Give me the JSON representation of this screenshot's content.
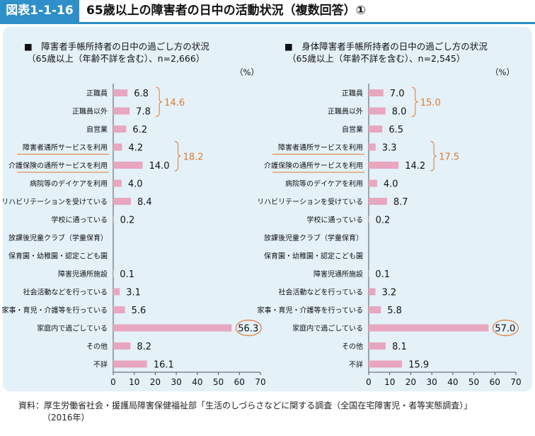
{
  "figure": {
    "number": "図表1-1-16",
    "title": "65歳以上の障害者の日中の活動状況（複数回答）①"
  },
  "source": {
    "line1": "資料：厚生労働省社会・援護局障害保健福祉部「生活のしづらさなどに関する調査（全国在宅障害児・者等実態調査）」",
    "line2": "（2016年）"
  },
  "colors": {
    "bar": "#e8a7bf",
    "accent": "#e07b2e",
    "header": "#2e8fc9",
    "panel": "#e4f1f9"
  },
  "chart_data": [
    {
      "type": "bar",
      "orientation": "horizontal",
      "title": "■　障害者手帳所持者の日中の過ごし方の状況",
      "subtitle": "（65歳以上（年齢不詳を含む）、n=2,666）",
      "unit": "（%）",
      "categories": [
        "正職員",
        "正職員以外",
        "自営業",
        "障害者通所サービスを利用",
        "介護保険の通所サービスを利用",
        "病院等のデイケアを利用",
        "リハビリテーションを受けている",
        "学校に通っている",
        "放課後児童クラブ（学童保育）",
        "保育園・幼稚園・認定こども園",
        "障害児通所施設",
        "社会活動などを行っている",
        "家事・育児・介護等を行っている",
        "家庭内で過ごしている",
        "その他",
        "不詳"
      ],
      "values": [
        6.8,
        7.8,
        6.2,
        4.2,
        14.0,
        4.0,
        8.4,
        0.2,
        null,
        null,
        0.1,
        3.1,
        5.6,
        56.3,
        8.2,
        16.1
      ],
      "value_labels": [
        "6.8",
        "7.8",
        "6.2",
        "4.2",
        "14.0",
        "4.0",
        "8.4",
        "0.2",
        "",
        "",
        "0.1",
        "3.1",
        "5.6",
        "56.3",
        "8.2",
        "16.1"
      ],
      "xlim": [
        0,
        70
      ],
      "ticks": [
        "0",
        "10",
        "20",
        "30",
        "40",
        "50",
        "60",
        "70"
      ],
      "annotations": [
        {
          "text": "14.6",
          "rows": [
            0,
            1
          ]
        },
        {
          "text": "18.2",
          "rows": [
            3,
            4
          ]
        }
      ],
      "underlined": [
        3,
        4
      ],
      "circled": 13
    },
    {
      "type": "bar",
      "orientation": "horizontal",
      "title": "■　身体障害者手帳所持者の日中の過ごし方の状況",
      "subtitle": "（65歳以上（年齢不詳を含む）、n=2,545）",
      "unit": "（%）",
      "categories": [
        "正職員",
        "正職員以外",
        "自営業",
        "障害者通所サービスを利用",
        "介護保険の通所サービスを利用",
        "病院等のデイケアを利用",
        "リハビリテーションを受けている",
        "学校に通っている",
        "放課後児童クラブ（学童保育）",
        "保育園・幼稚園・認定こども園",
        "障害児通所施設",
        "社会活動などを行っている",
        "家事・育児・介護等を行っている",
        "家庭内で過ごしている",
        "その他",
        "不詳"
      ],
      "values": [
        7.0,
        8.0,
        6.5,
        3.3,
        14.2,
        4.0,
        8.7,
        0.2,
        null,
        null,
        0.1,
        3.2,
        5.8,
        57.0,
        8.1,
        15.9
      ],
      "value_labels": [
        "7.0",
        "8.0",
        "6.5",
        "3.3",
        "14.2",
        "4.0",
        "8.7",
        "0.2",
        "",
        "",
        "0.1",
        "3.2",
        "5.8",
        "57.0",
        "8.1",
        "15.9"
      ],
      "xlim": [
        0,
        70
      ],
      "ticks": [
        "0",
        "10",
        "20",
        "30",
        "40",
        "50",
        "60",
        "70"
      ],
      "annotations": [
        {
          "text": "15.0",
          "rows": [
            0,
            1
          ]
        },
        {
          "text": "17.5",
          "rows": [
            3,
            4
          ]
        }
      ],
      "underlined": [
        3,
        4
      ],
      "circled": 13
    }
  ]
}
